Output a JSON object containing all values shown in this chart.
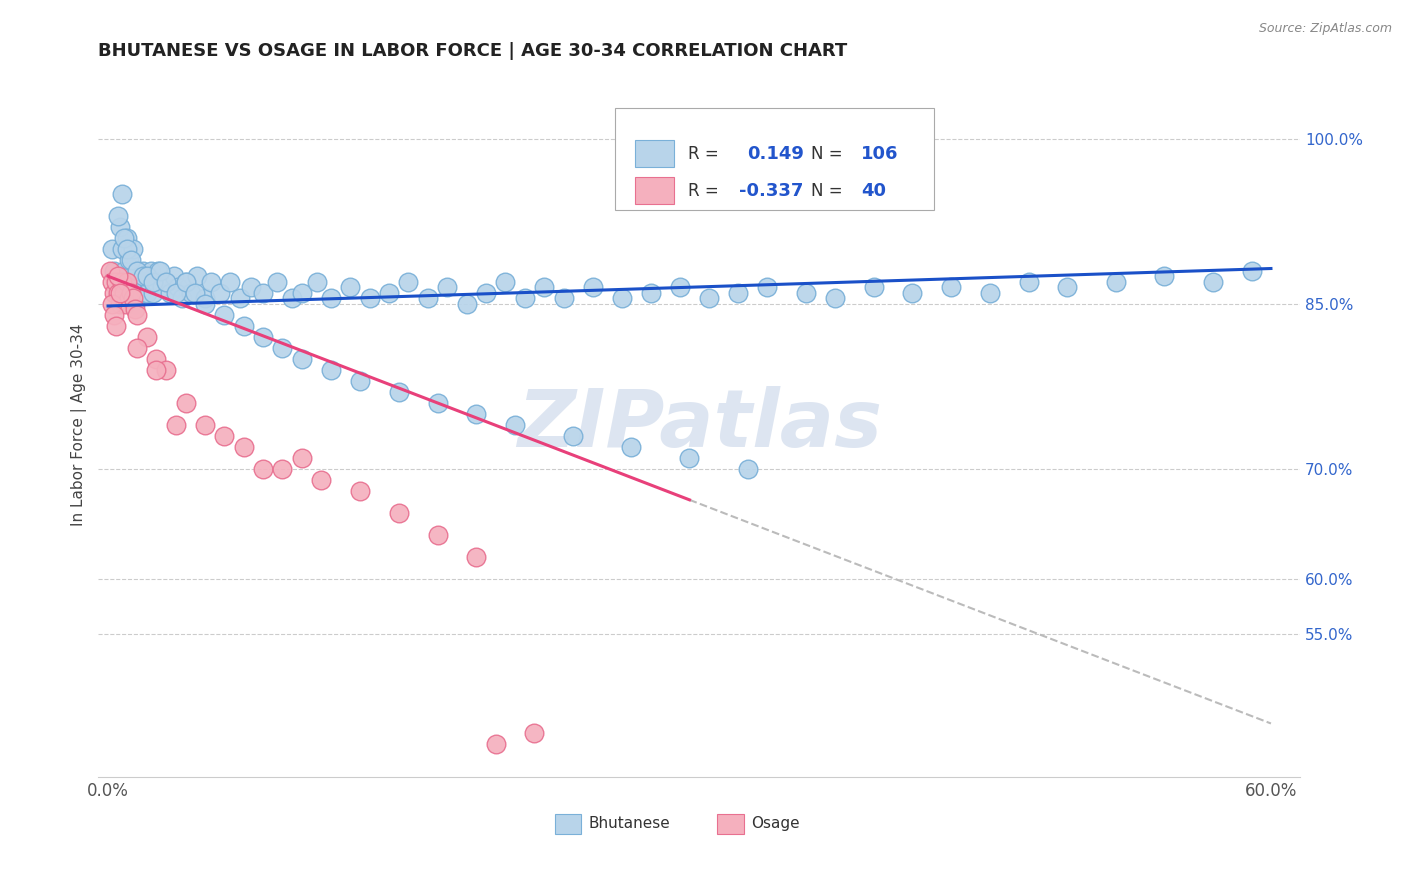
{
  "title": "BHUTANESE VS OSAGE IN LABOR FORCE | AGE 30-34 CORRELATION CHART",
  "source": "Source: ZipAtlas.com",
  "ylabel": "In Labor Force | Age 30-34",
  "xlim": [
    -0.005,
    0.615
  ],
  "ylim": [
    0.42,
    1.06
  ],
  "xtick_positions": [
    0.0,
    0.1,
    0.2,
    0.3,
    0.4,
    0.5,
    0.6
  ],
  "xticklabels": [
    "0.0%",
    "",
    "",
    "",
    "",
    "",
    "60.0%"
  ],
  "yticks_right": [
    0.55,
    0.6,
    0.7,
    0.85,
    1.0
  ],
  "ytick_right_labels": [
    "55.0%",
    "60.0%",
    "70.0%",
    "85.0%",
    "100.0%"
  ],
  "bhutanese_color": "#b8d4ea",
  "bhutanese_edge": "#7ab0d8",
  "osage_color": "#f5b0be",
  "osage_edge": "#e87090",
  "bhutanese_R": 0.149,
  "bhutanese_N": 106,
  "osage_R": -0.337,
  "osage_N": 40,
  "trend_blue_color": "#1a50c8",
  "trend_pink_color": "#e8407a",
  "trend_dash_color": "#bbbbbb",
  "blue_trend_x": [
    0.0,
    0.6
  ],
  "blue_trend_y": [
    0.848,
    0.882
  ],
  "pink_trend_x0": 0.0,
  "pink_trend_x1": 0.3,
  "pink_trend_y0": 0.875,
  "pink_trend_y1": 0.672,
  "dash_trend_x0": 0.3,
  "dash_trend_x1": 0.6,
  "dash_trend_y0": 0.672,
  "dash_trend_y1": 0.469,
  "grid_color": "#cccccc",
  "grid_style": "--",
  "watermark": "ZIPatlas",
  "watermark_color": "#ccd8ea",
  "legend_R1": "0.149",
  "legend_N1": "106",
  "legend_R2": "-0.337",
  "legend_N2": "40",
  "legend_box_blue": "#b8d4ea",
  "legend_box_blue_edge": "#7ab0d8",
  "legend_box_pink": "#f5b0be",
  "legend_box_pink_edge": "#e87090",
  "bottom_legend_blue": "#b8d4ea",
  "bottom_legend_pink": "#f5b0be",
  "bhutanese_pts_x": [
    0.002,
    0.003,
    0.005,
    0.006,
    0.007,
    0.007,
    0.008,
    0.009,
    0.01,
    0.011,
    0.012,
    0.013,
    0.013,
    0.014,
    0.015,
    0.016,
    0.017,
    0.018,
    0.019,
    0.02,
    0.021,
    0.022,
    0.023,
    0.025,
    0.026,
    0.028,
    0.03,
    0.032,
    0.034,
    0.036,
    0.038,
    0.04,
    0.043,
    0.046,
    0.05,
    0.053,
    0.058,
    0.063,
    0.068,
    0.074,
    0.08,
    0.087,
    0.095,
    0.1,
    0.108,
    0.115,
    0.125,
    0.135,
    0.145,
    0.155,
    0.165,
    0.175,
    0.185,
    0.195,
    0.205,
    0.215,
    0.225,
    0.235,
    0.25,
    0.265,
    0.28,
    0.295,
    0.31,
    0.325,
    0.34,
    0.36,
    0.375,
    0.395,
    0.415,
    0.435,
    0.455,
    0.475,
    0.495,
    0.52,
    0.545,
    0.57,
    0.59,
    0.005,
    0.008,
    0.01,
    0.012,
    0.015,
    0.018,
    0.02,
    0.023,
    0.027,
    0.03,
    0.035,
    0.04,
    0.045,
    0.05,
    0.06,
    0.07,
    0.08,
    0.09,
    0.1,
    0.115,
    0.13,
    0.15,
    0.17,
    0.19,
    0.21,
    0.24,
    0.27,
    0.3,
    0.33
  ],
  "bhutanese_pts_y": [
    0.9,
    0.88,
    0.87,
    0.92,
    0.95,
    0.9,
    0.88,
    0.86,
    0.91,
    0.89,
    0.87,
    0.9,
    0.87,
    0.85,
    0.88,
    0.87,
    0.86,
    0.88,
    0.87,
    0.86,
    0.87,
    0.88,
    0.86,
    0.87,
    0.88,
    0.865,
    0.87,
    0.86,
    0.875,
    0.865,
    0.855,
    0.87,
    0.86,
    0.875,
    0.855,
    0.87,
    0.86,
    0.87,
    0.855,
    0.865,
    0.86,
    0.87,
    0.855,
    0.86,
    0.87,
    0.855,
    0.865,
    0.855,
    0.86,
    0.87,
    0.855,
    0.865,
    0.85,
    0.86,
    0.87,
    0.855,
    0.865,
    0.855,
    0.865,
    0.855,
    0.86,
    0.865,
    0.855,
    0.86,
    0.865,
    0.86,
    0.855,
    0.865,
    0.86,
    0.865,
    0.86,
    0.87,
    0.865,
    0.87,
    0.875,
    0.87,
    0.88,
    0.93,
    0.91,
    0.9,
    0.89,
    0.88,
    0.875,
    0.875,
    0.87,
    0.88,
    0.87,
    0.86,
    0.87,
    0.86,
    0.85,
    0.84,
    0.83,
    0.82,
    0.81,
    0.8,
    0.79,
    0.78,
    0.77,
    0.76,
    0.75,
    0.74,
    0.73,
    0.72,
    0.71,
    0.7
  ],
  "osage_pts_x": [
    0.001,
    0.002,
    0.003,
    0.004,
    0.005,
    0.006,
    0.007,
    0.008,
    0.009,
    0.01,
    0.011,
    0.012,
    0.013,
    0.014,
    0.015,
    0.02,
    0.025,
    0.03,
    0.04,
    0.05,
    0.06,
    0.07,
    0.08,
    0.09,
    0.1,
    0.11,
    0.13,
    0.15,
    0.17,
    0.19,
    0.002,
    0.003,
    0.004,
    0.005,
    0.006,
    0.015,
    0.025,
    0.035,
    0.2,
    0.22
  ],
  "osage_pts_y": [
    0.88,
    0.87,
    0.86,
    0.87,
    0.86,
    0.85,
    0.87,
    0.86,
    0.85,
    0.87,
    0.855,
    0.86,
    0.855,
    0.845,
    0.84,
    0.82,
    0.8,
    0.79,
    0.76,
    0.74,
    0.73,
    0.72,
    0.7,
    0.7,
    0.71,
    0.69,
    0.68,
    0.66,
    0.64,
    0.62,
    0.85,
    0.84,
    0.83,
    0.875,
    0.86,
    0.81,
    0.79,
    0.74,
    0.45,
    0.46
  ]
}
